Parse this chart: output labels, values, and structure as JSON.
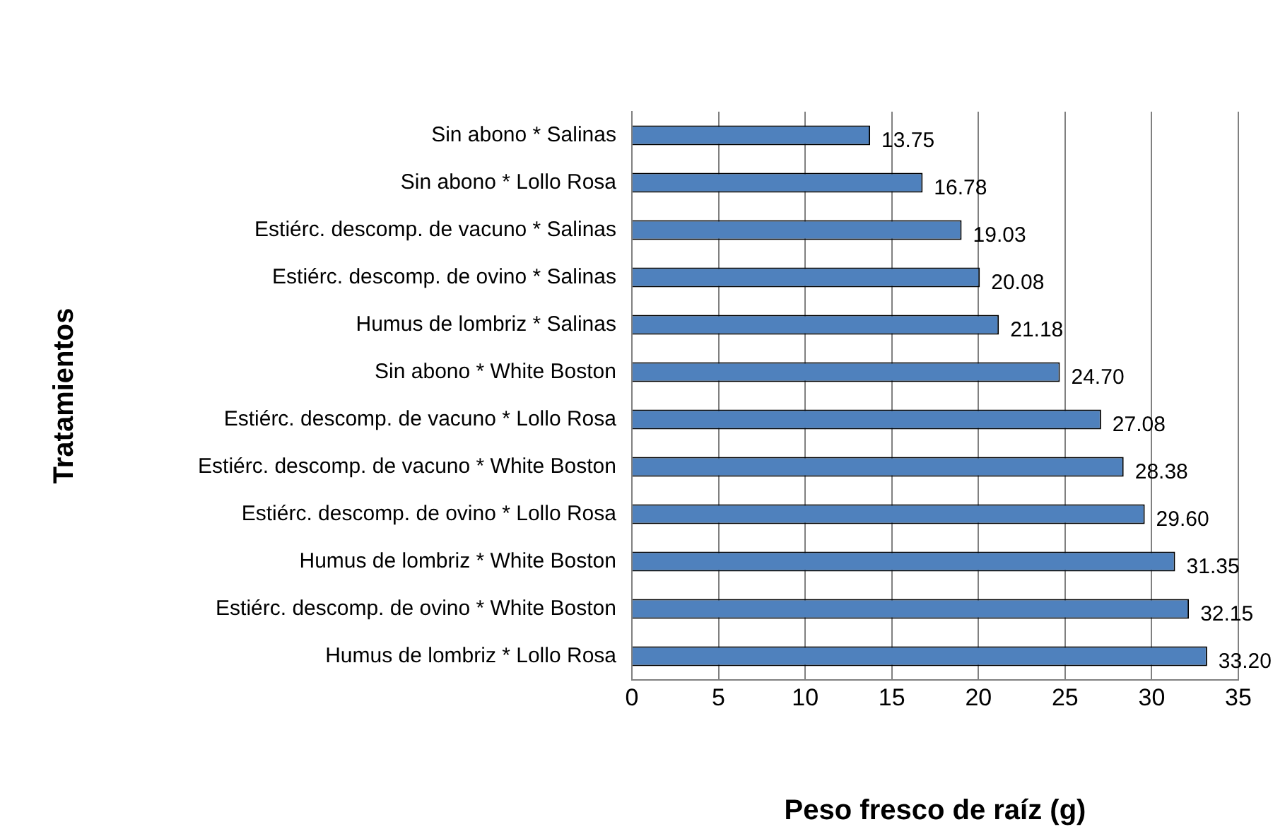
{
  "chart_data": {
    "type": "bar",
    "orientation": "horizontal",
    "xlabel": "Peso fresco de raíz (g)",
    "ylabel": "Tratamientos",
    "categories": [
      "Sin abono * Salinas",
      "Sin abono * Lollo Rosa",
      "Estiérc. descomp. de vacuno * Salinas",
      "Estiérc. descomp. de ovino * Salinas",
      "Humus de lombriz * Salinas",
      "Sin abono * White Boston",
      "Estiérc. descomp. de vacuno * Lollo Rosa",
      "Estiérc. descomp. de vacuno * White Boston",
      "Estiérc. descomp. de ovino * Lollo Rosa",
      "Humus de lombriz * White Boston",
      "Estiérc. descomp. de ovino * White Boston",
      "Humus de lombriz * Lollo Rosa"
    ],
    "values": [
      13.75,
      16.78,
      19.03,
      20.08,
      21.18,
      24.7,
      27.08,
      28.38,
      29.6,
      31.35,
      32.15,
      33.2
    ],
    "value_labels": [
      "13.75",
      "16.78",
      "19.03",
      "20.08",
      "21.18",
      "24.70",
      "27.08",
      "28.38",
      "29.60",
      "31.35",
      "32.15",
      "33.20"
    ],
    "color": "#4f81bd",
    "xlim": [
      0,
      35
    ],
    "xticks": [
      0,
      5,
      10,
      15,
      20,
      25,
      30,
      35
    ],
    "grid": "x",
    "legend": false
  }
}
